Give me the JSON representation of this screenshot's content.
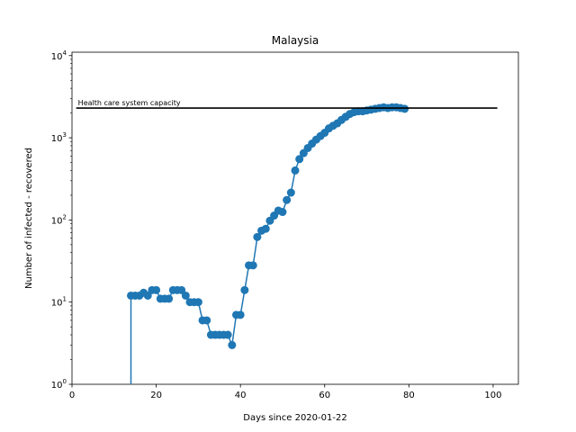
{
  "chart_data": {
    "type": "scatter",
    "title": "Malaysia",
    "xlabel": "Days since 2020-01-22",
    "ylabel": "Number of infected - recovered",
    "xlim": [
      0,
      106
    ],
    "ylim": [
      1,
      11000
    ],
    "yscale": "log",
    "grid": false,
    "x_ticks": [
      0,
      20,
      40,
      60,
      80,
      100
    ],
    "y_ticks": [
      {
        "value": 1,
        "base": "10",
        "exp": "0"
      },
      {
        "value": 10,
        "base": "10",
        "exp": "1"
      },
      {
        "value": 100,
        "base": "10",
        "exp": "2"
      },
      {
        "value": 1000,
        "base": "10",
        "exp": "3"
      },
      {
        "value": 10000,
        "base": "10",
        "exp": "4"
      }
    ],
    "series": [
      {
        "color": "#1f77b4",
        "line_start": {
          "x": 14,
          "y": 1
        },
        "x": [
          14,
          15,
          16,
          17,
          18,
          19,
          20,
          21,
          22,
          23,
          24,
          25,
          26,
          27,
          28,
          29,
          30,
          31,
          32,
          33,
          34,
          35,
          36,
          37,
          38,
          39,
          40,
          41,
          42,
          43,
          44,
          45,
          46,
          47,
          48,
          49,
          50,
          51,
          52,
          53,
          54,
          55,
          56,
          57,
          58,
          59,
          60,
          61,
          62,
          63,
          64,
          65,
          66,
          67,
          68,
          69,
          70,
          71,
          72,
          73,
          74,
          75,
          76,
          77,
          78,
          79
        ],
        "y": [
          12,
          12,
          12,
          13,
          12,
          14,
          14,
          11,
          11,
          11,
          14,
          14,
          14,
          12,
          10,
          10,
          10,
          6,
          6,
          4,
          4,
          4,
          4,
          4,
          3,
          7,
          7,
          14,
          28,
          28,
          62,
          74,
          78,
          98,
          113,
          130,
          125,
          175,
          215,
          400,
          550,
          650,
          750,
          850,
          950,
          1050,
          1150,
          1300,
          1400,
          1500,
          1650,
          1800,
          1950,
          2050,
          2100,
          2100,
          2150,
          2200,
          2250,
          2300,
          2350,
          2300,
          2350,
          2350,
          2300,
          2250
        ]
      }
    ],
    "hline": {
      "y": 2300,
      "x_start": 1,
      "x_end": 101,
      "color": "#000000",
      "label": "Health care system capacity"
    }
  }
}
